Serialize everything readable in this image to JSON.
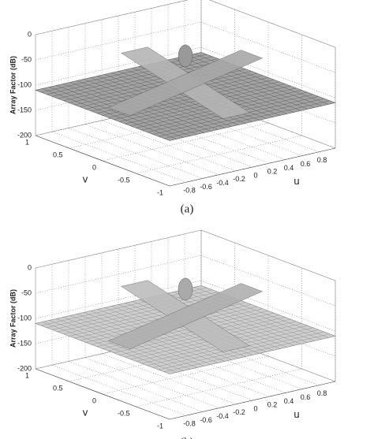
{
  "figures": [
    {
      "caption": "(a)",
      "z_label": "Array Factor (dB)",
      "u_label": "u",
      "v_label": "v",
      "zlim": [
        -200,
        0
      ],
      "ulim": [
        -1,
        1
      ],
      "vlim": [
        -1,
        1
      ],
      "zticks": [
        0,
        -50,
        -100,
        -150,
        -200
      ],
      "vticks": [
        1,
        0.5,
        0,
        -0.5,
        -1
      ],
      "uticks": [
        -0.8,
        -0.6,
        -0.4,
        -0.2,
        0,
        0.2,
        0.4,
        0.6,
        0.8
      ]
    },
    {
      "caption": "(b)",
      "z_label": "Array Factor (dB)",
      "u_label": "u",
      "v_label": "v",
      "zlim": [
        -200,
        0
      ],
      "ulim": [
        -1,
        1
      ],
      "vlim": [
        -1,
        1
      ],
      "zticks": [
        0,
        -50,
        -100,
        -150,
        -200
      ],
      "vticks": [
        1,
        0.5,
        0,
        -0.5,
        -1
      ],
      "uticks": [
        -0.8,
        -0.6,
        -0.4,
        -0.2,
        0,
        0.2,
        0.4,
        0.6,
        0.8
      ]
    }
  ]
}
